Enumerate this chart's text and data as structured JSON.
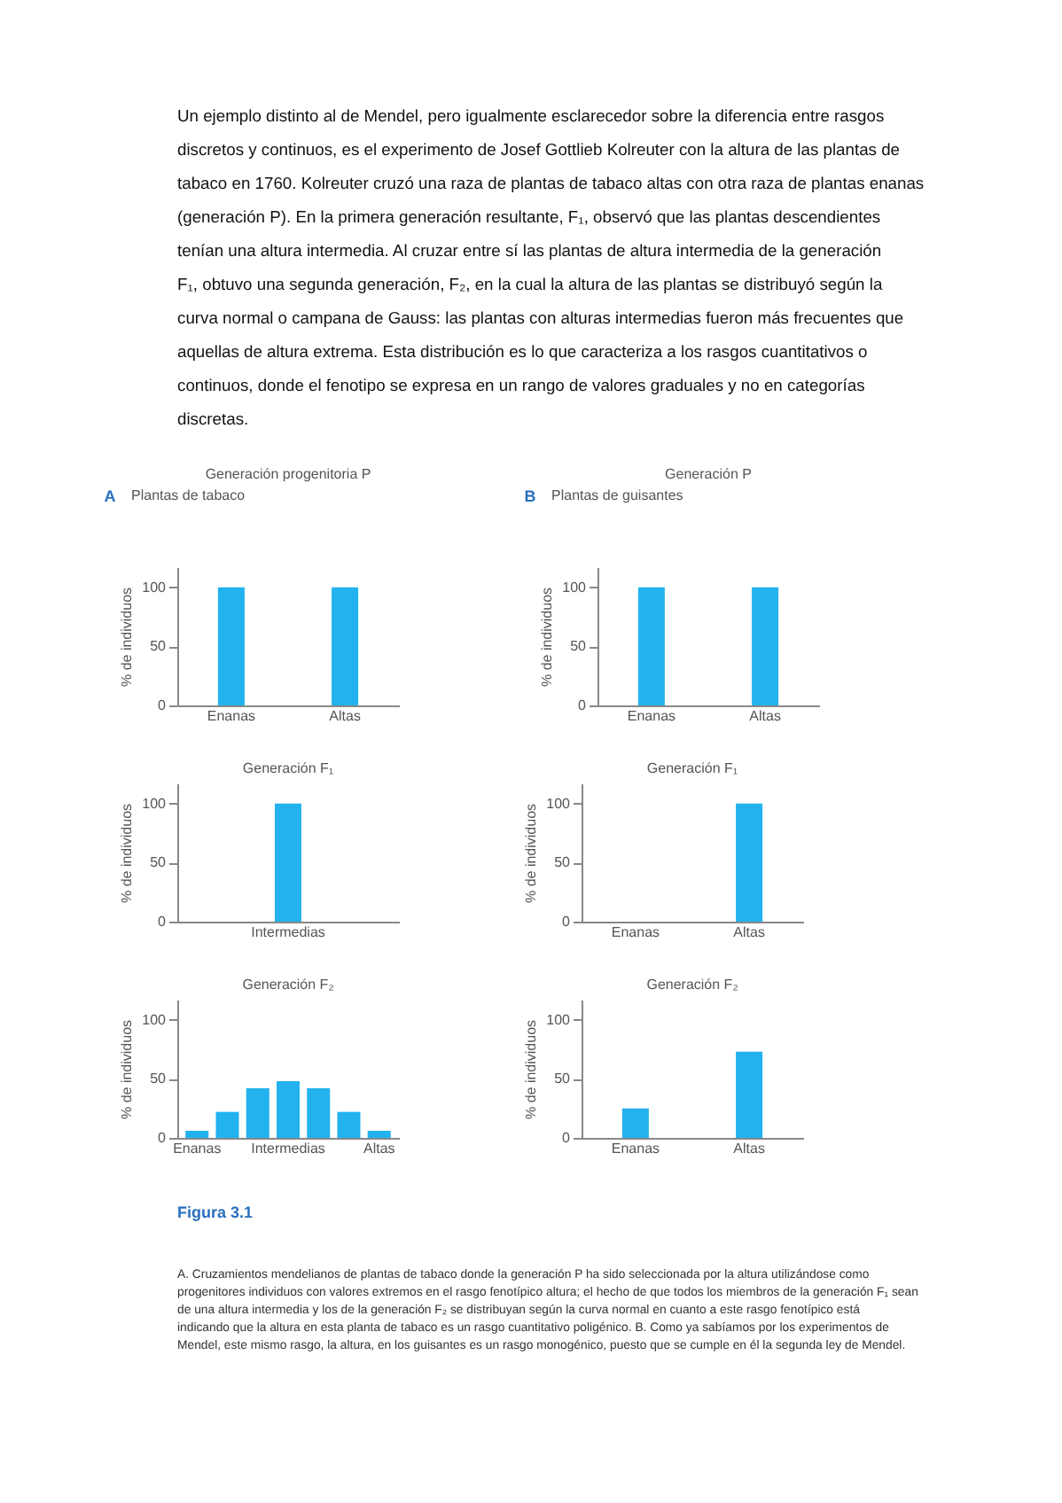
{
  "chart_data": [
    {
      "type": "bar",
      "title": "Generación progenitoria P",
      "ylabel": "% de individuos",
      "categories": [
        "Enanas",
        "Altas"
      ],
      "values": [
        100,
        100
      ],
      "color": "#22b2ee",
      "ylim": [
        0,
        117
      ],
      "yticks": [
        0,
        50,
        100
      ],
      "grid": false,
      "annotations": [
        "Un ejemplo distinto al de Mendel, pero igualmente esclarecedor sobre la diferencia entre rasgos discretos y continuos, es el experimento de Josef Gottlieb Kolreuter con la altura de las plantas de tabaco en 1760. Kolreuter cruzó una raza de plantas de tabaco altas con otra raza de plantas enanas (generación P). En la primera generación resultante, F₁, observó que las plantas descendientes tenían una altura intermedia. Al cruzar entre sí las plantas de altura intermedia de la generación F₁, obtuvo una segunda generación, F₂, en la cual la altura de las plantas se distribuyó según la curva normal o campana de Gauss: las plantas con alturas intermedias fueron más frecuentes que aquellas de altura extrema. Esta distribución es lo que caracteriza a los rasgos cuantitativos o continuos, donde el fenotipo se expresa en un rango de valores graduales y no en categorías discretas.",
        "A",
        "Plantas de tabaco"
      ]
    },
    {
      "type": "bar",
      "title": "Generación P",
      "ylabel": "% de individuos",
      "categories": [
        "Enanas",
        "Altas"
      ],
      "values": [
        100,
        100
      ],
      "color": "#22b2ee",
      "ylim": [
        0,
        117
      ],
      "yticks": [
        0,
        50,
        100
      ],
      "grid": false,
      "annotations": [
        "B",
        "Plantas de guisantes"
      ]
    },
    {
      "type": "bar",
      "title": "Generación F₁",
      "ylabel": "% de individuos",
      "categories": [
        "Intermedias"
      ],
      "values": [
        100
      ],
      "color": "#22b2ee",
      "ylim": [
        0,
        117
      ],
      "yticks": [
        0,
        50,
        100
      ],
      "grid": false
    },
    {
      "type": "bar",
      "title": "Generación F₁",
      "ylabel": "% de individuos",
      "categories": [
        "Enanas",
        "Altas"
      ],
      "values": [
        0,
        100
      ],
      "color": "#22b2ee",
      "ylim": [
        0,
        117
      ],
      "yticks": [
        0,
        50,
        100
      ],
      "grid": false
    },
    {
      "type": "bar",
      "title": "Generación F₂",
      "ylabel": "% de individuos",
      "categories": [
        "Enanas",
        null,
        null,
        "Intermedias",
        null,
        null,
        "Altas"
      ],
      "values": [
        6,
        22,
        42,
        48,
        42,
        22,
        6
      ],
      "color": "#22b2ee",
      "ylim": [
        0,
        117
      ],
      "yticks": [
        0,
        50,
        100
      ],
      "grid": false
    },
    {
      "type": "bar",
      "title": "Generación F₂",
      "ylabel": "% de individuos",
      "categories": [
        "Enanas",
        "Altas"
      ],
      "values": [
        25,
        73
      ],
      "color": "#22b2ee",
      "ylim": [
        0,
        117
      ],
      "yticks": [
        0,
        50,
        100
      ],
      "grid": false,
      "annotations": [
        "Figura 3.1",
        "A. Cruzamientos mendelianos de plantas de tabaco donde la generación P ha sido seleccionada por la altura utilizándose como progenitores individuos con valores extremos en el rasgo fenotípico altura; el hecho de que todos los miembros de la generación F₁ sean de una altura intermedia y los de la generación F₂ se distribuyan según la curva normal en cuanto a este rasgo fenotípico está indicando que la altura en esta planta de tabaco es un rasgo cuantitativo poligénico. B. Como ya sabíamos por los experimentos de Mendel, este mismo rasgo, la altura, en los guisantes es un rasgo monogénico, puesto que se cumple en él la segunda ley de Mendel."
      ]
    }
  ]
}
